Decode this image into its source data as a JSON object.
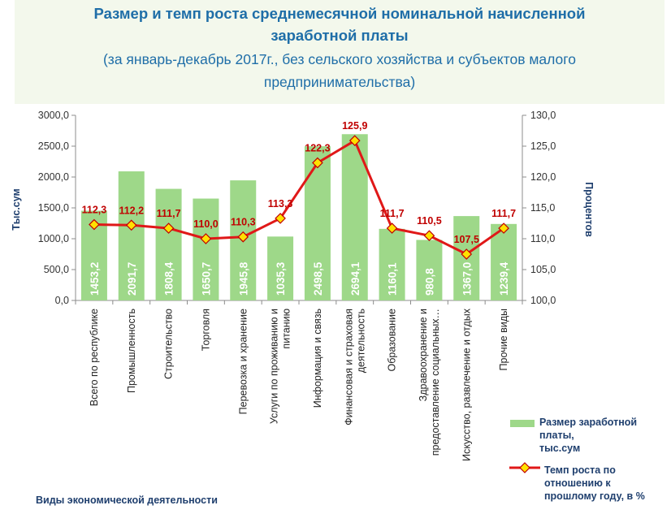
{
  "chart_data": {
    "type": "bar",
    "title_lines": [
      "Размер и темп роста среднемесячной номинальной начисленной",
      "заработной платы"
    ],
    "subtitle_lines": [
      "(за январь-декабрь 2017г., без сельского хозяйства и субъектов малого",
      "предпринимательства)"
    ],
    "xlabel": "Виды экономической деятельности",
    "ylabel_left": "Тыс.сум",
    "ylabel_right": "Процентов",
    "ylim_left": [
      0,
      3000
    ],
    "ylim_right": [
      100,
      130
    ],
    "yticks_left": [
      "0,0",
      "500,0",
      "1000,0",
      "1500,0",
      "2000,0",
      "2500,0",
      "3000,0"
    ],
    "yticks_right": [
      "100,0",
      "105,0",
      "110,0",
      "115,0",
      "120,0",
      "125,0",
      "130,0"
    ],
    "categories": [
      [
        "Всего по республике"
      ],
      [
        "Промышленность"
      ],
      [
        "Строительство"
      ],
      [
        "Торговля"
      ],
      [
        "Перевозка и хранение"
      ],
      [
        "Услуги по проживанию и",
        "питанию"
      ],
      [
        "Информация и связь"
      ],
      [
        "Финансовая и страховая",
        "деятельность"
      ],
      [
        "Образование"
      ],
      [
        "Здравоохранение и",
        "предоставление социальных…"
      ],
      [
        "Искусство, развлечение и отдых"
      ],
      [
        "Прочие виды"
      ]
    ],
    "series": [
      {
        "name_lines": [
          "Размер заработной",
          "платы,",
          "тыс.сум"
        ],
        "type": "bar",
        "axis": "left",
        "values": [
          1453.2,
          2091.7,
          1808.4,
          1650.7,
          1945.8,
          1035.3,
          2498.5,
          2694.1,
          1160.1,
          980.8,
          1367.0,
          1239.4
        ],
        "labels": [
          "1453,2",
          "2091,7",
          "1808,4",
          "1650,7",
          "1945,8",
          "1035,3",
          "2498,5",
          "2694,1",
          "1160,1",
          "980,8",
          "1367,0",
          "1239,4"
        ],
        "color": "#9ed889"
      },
      {
        "name_lines": [
          "Темп роста  по",
          "отношению к",
          "прошлому году, в %"
        ],
        "type": "line",
        "axis": "right",
        "values": [
          112.3,
          112.2,
          111.7,
          110.0,
          110.3,
          113.3,
          122.3,
          125.9,
          111.7,
          110.5,
          107.5,
          111.7
        ],
        "labels": [
          "112,3",
          "112,2",
          "111,7",
          "110,0",
          "110,3",
          "113,3",
          "122,3",
          "125,9",
          "111,7",
          "110,5",
          "107,5",
          "111,7"
        ],
        "color": "#e01818",
        "marker_color": "#ffe100"
      }
    ],
    "grid": false,
    "legend_position": "bottom-right"
  }
}
